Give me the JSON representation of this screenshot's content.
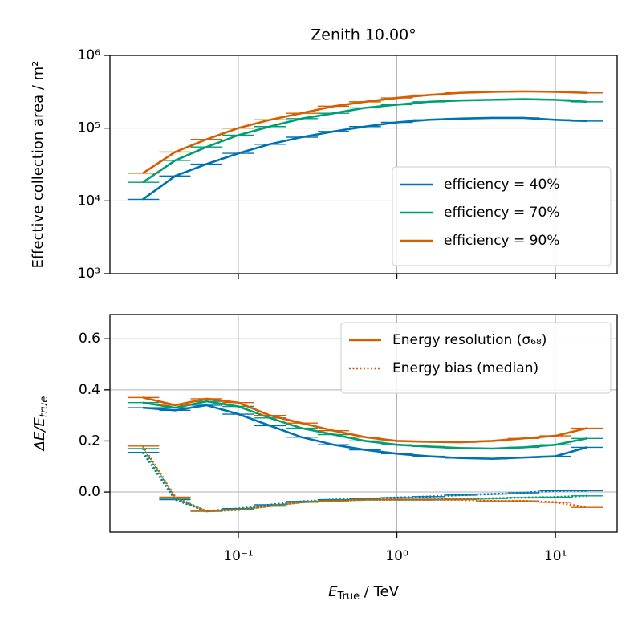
{
  "chart_data": [
    {
      "type": "line",
      "title": "Zenith 10.00°",
      "ylabel": "Effective collection area / m²",
      "xscale": "log",
      "yscale": "log",
      "grid": true,
      "legend_loc": "lower right",
      "xlim": [
        0.0155,
        24.5
      ],
      "ylim": [
        1000,
        1000000
      ],
      "xticks": [
        0.1,
        1,
        10
      ],
      "yticks": [
        {
          "value": 1000,
          "label": "10³"
        },
        {
          "value": 10000,
          "label": "10⁴"
        },
        {
          "value": 100000,
          "label": "10⁵"
        },
        {
          "value": 1000000,
          "label": "10⁶"
        }
      ],
      "x": [
        0.025,
        0.04,
        0.063,
        0.1,
        0.158,
        0.25,
        0.4,
        0.63,
        1.0,
        1.58,
        2.5,
        4.0,
        6.3,
        10,
        15.8
      ],
      "bins": [
        0.02,
        0.0317,
        0.05,
        0.0794,
        0.126,
        0.2,
        0.317,
        0.5,
        0.794,
        1.26,
        2.0,
        3.17,
        5.0,
        7.94,
        12.6,
        20
      ],
      "series": [
        {
          "name": "efficiency = 40%",
          "color": "#0072b2",
          "style": "solid",
          "values": [
            10500,
            22000,
            32000,
            45000,
            60000,
            75000,
            90000,
            105000,
            120000,
            130000,
            135000,
            138000,
            138000,
            130000,
            125000
          ]
        },
        {
          "name": "efficiency = 70%",
          "color": "#009e73",
          "style": "solid",
          "values": [
            18000,
            36000,
            55000,
            80000,
            105000,
            135000,
            160000,
            190000,
            210000,
            230000,
            240000,
            245000,
            250000,
            245000,
            230000
          ]
        },
        {
          "name": "efficiency = 90%",
          "color": "#d55e00",
          "style": "solid",
          "values": [
            24000,
            47000,
            70000,
            100000,
            130000,
            160000,
            200000,
            230000,
            260000,
            285000,
            305000,
            315000,
            320000,
            315000,
            305000
          ]
        }
      ]
    },
    {
      "type": "line",
      "ylabel": [
        "ΔE/E",
        "true"
      ],
      "xlabel": [
        "E",
        "True",
        " / TeV"
      ],
      "xscale": "log",
      "yscale": "linear",
      "grid": true,
      "legend_loc": "upper right",
      "xlim": [
        0.0155,
        24.5
      ],
      "ylim": [
        -0.157,
        0.695
      ],
      "xticks": [
        {
          "value": 0.1,
          "label": "10⁻¹"
        },
        {
          "value": 1,
          "label": "10⁰"
        },
        {
          "value": 10,
          "label": "10¹"
        }
      ],
      "yticks": [
        {
          "value": 0,
          "label": "0.0"
        },
        0.2,
        0.4,
        0.6
      ],
      "x": [
        0.025,
        0.04,
        0.063,
        0.1,
        0.158,
        0.25,
        0.4,
        0.63,
        1.0,
        1.58,
        2.5,
        4.0,
        6.3,
        10,
        15.8
      ],
      "bins": [
        0.02,
        0.0317,
        0.05,
        0.0794,
        0.126,
        0.2,
        0.317,
        0.5,
        0.794,
        1.26,
        2.0,
        3.17,
        5.0,
        7.94,
        12.6,
        20
      ],
      "legend": [
        {
          "name": "Energy resolution (σ₆₈)",
          "color": "#d55e00",
          "style": "solid"
        },
        {
          "name": "Energy bias (median)",
          "color": "#d55e00",
          "style": "dotted"
        }
      ],
      "series": [
        {
          "color": "#0072b2",
          "style": "solid",
          "values": [
            0.33,
            0.32,
            0.34,
            0.305,
            0.26,
            0.215,
            0.185,
            0.165,
            0.15,
            0.14,
            0.133,
            0.13,
            0.135,
            0.14,
            0.175
          ]
        },
        {
          "color": "#009e73",
          "style": "solid",
          "values": [
            0.35,
            0.33,
            0.355,
            0.335,
            0.29,
            0.25,
            0.225,
            0.2,
            0.185,
            0.178,
            0.172,
            0.17,
            0.175,
            0.185,
            0.21
          ]
        },
        {
          "color": "#d55e00",
          "style": "solid",
          "values": [
            0.37,
            0.34,
            0.365,
            0.35,
            0.3,
            0.27,
            0.24,
            0.215,
            0.2,
            0.197,
            0.195,
            0.2,
            0.21,
            0.22,
            0.25
          ]
        },
        {
          "color": "#0072b2",
          "style": "dotted",
          "values": [
            0.155,
            -0.03,
            -0.075,
            -0.065,
            -0.05,
            -0.037,
            -0.03,
            -0.027,
            -0.022,
            -0.018,
            -0.012,
            -0.008,
            -0.003,
            0.005,
            0.005
          ]
        },
        {
          "color": "#009e73",
          "style": "dotted",
          "values": [
            0.17,
            -0.025,
            -0.075,
            -0.068,
            -0.055,
            -0.04,
            -0.033,
            -0.03,
            -0.03,
            -0.03,
            -0.028,
            -0.025,
            -0.022,
            -0.02,
            -0.015
          ]
        },
        {
          "color": "#d55e00",
          "style": "dotted",
          "values": [
            0.18,
            -0.02,
            -0.075,
            -0.07,
            -0.055,
            -0.04,
            -0.035,
            -0.03,
            -0.03,
            -0.03,
            -0.03,
            -0.035,
            -0.035,
            -0.04,
            -0.06
          ]
        }
      ]
    }
  ]
}
